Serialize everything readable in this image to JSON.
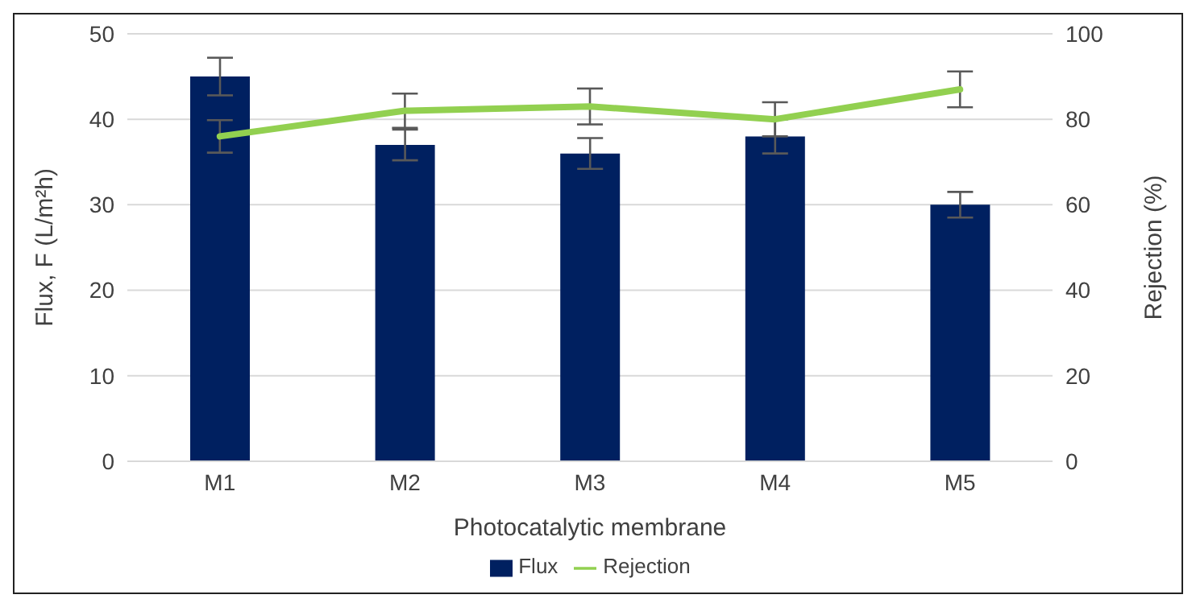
{
  "chart_data": {
    "type": "bar",
    "xlabel": "Photocatalytic membrane",
    "ylabel": "Flux, F (L/m²h)",
    "y2label": "Rejection (%)",
    "categories": [
      "M1",
      "M2",
      "M3",
      "M4",
      "M5"
    ],
    "series": [
      {
        "name": "Flux",
        "color": "#002060",
        "values": [
          45,
          37,
          36,
          38,
          30
        ],
        "errors": [
          2.2,
          1.8,
          1.8,
          2,
          1.5
        ]
      },
      {
        "name": "Rejection",
        "type": "line",
        "axis": "y2",
        "color": "#92d050",
        "values": [
          76,
          82,
          83,
          80,
          87
        ],
        "errors": [
          3.8,
          4,
          4.2,
          4,
          4.2
        ]
      }
    ],
    "ylim": [
      0,
      50
    ],
    "yticks": [
      0,
      10,
      20,
      30,
      40,
      50
    ],
    "y2lim": [
      0,
      100
    ],
    "y2ticks": [
      0,
      20,
      40,
      60,
      80,
      100
    ],
    "grid": "y",
    "legend": "bottom",
    "marker": "none"
  }
}
